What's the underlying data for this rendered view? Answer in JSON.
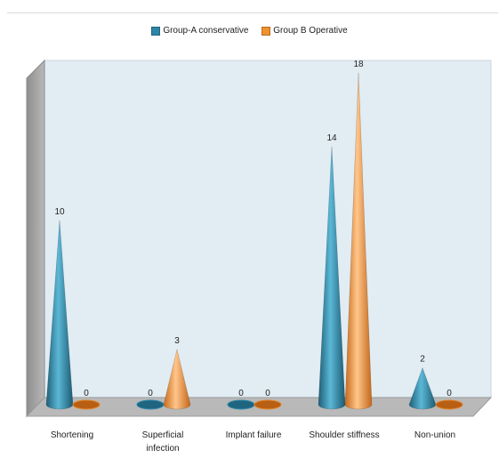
{
  "chart_data": {
    "type": "bar",
    "shape": "cone",
    "style": "3d",
    "categories": [
      "Shortening",
      "Superficial\ninfection",
      "Implant failure",
      "Shoulder stiffness",
      "Non-union"
    ],
    "series": [
      {
        "name": "Group-A conservative",
        "color": "#2e86a6",
        "values": [
          10,
          0,
          0,
          14,
          2
        ]
      },
      {
        "name": "Group B Operative",
        "color": "#f0922e",
        "values": [
          0,
          3,
          0,
          18,
          0
        ]
      }
    ],
    "ylim": [
      0,
      18
    ],
    "data_labels": true,
    "legend_position": "top-center",
    "grid": false,
    "title": "",
    "xlabel": "",
    "ylabel": ""
  }
}
